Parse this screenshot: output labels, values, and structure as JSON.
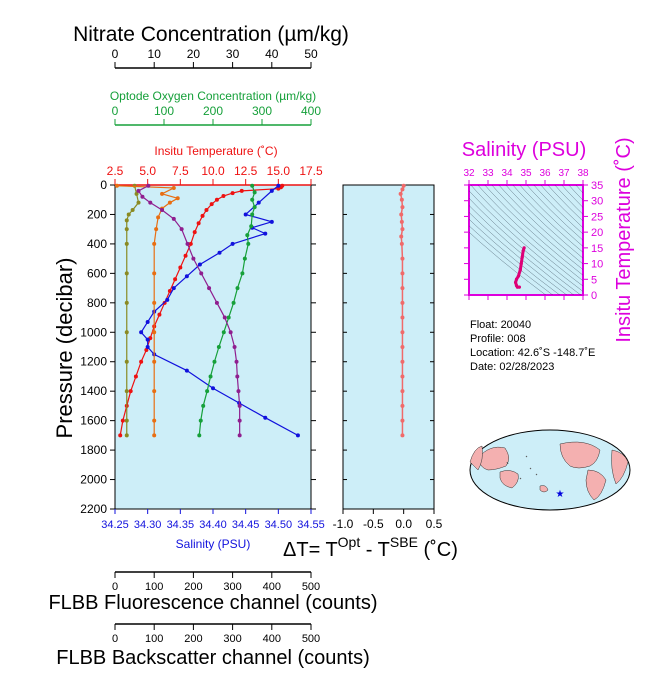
{
  "titles": {
    "nitrate": "Nitrate Concentration (µm/kg)",
    "oxygen": "Optode Oxygen Concentration (µm/kg)",
    "temperature": "Insitu Temperature (˚C)",
    "salinity": "Salinity (PSU)",
    "pressure": "Pressure (decibar)",
    "delta_t": "ΔT= T",
    "delta_t_sup1": "Opt",
    "delta_t_mid": " - T",
    "delta_t_sup2": "SBE",
    "delta_t_unit": " (˚C)",
    "fluorescence": "FLBB Fluorescence channel (counts)",
    "backscatter": "FLBB Backscatter channel (counts)",
    "ts_salinity": "Salinity (PSU)",
    "ts_temperature": "Insitu Temperature (˚C)"
  },
  "info": {
    "float": "Float:  20040",
    "profile": "Profile:  008",
    "location": "Location:  42.6˚S  -148.7˚E",
    "date": "Date:  02/28/2023"
  },
  "colors": {
    "panel_bg": "#cdeef8",
    "nitrate": "#8a8a22",
    "oxygen": "#16a03a",
    "temperature": "#ee1111",
    "salinity": "#1111dd",
    "fluorescence": "#e86e12",
    "backscatter": "#8f1e8f",
    "delta_t": "#f06a6a",
    "ts_track": "#dd0077",
    "magenta": "#dd00dd",
    "map_land": "#f4b0b0",
    "map_ocean": "#cdeef8",
    "star": "#0000dd"
  },
  "chart_data": [
    {
      "type": "line",
      "name": "main-profile",
      "y_axis": {
        "label": "Pressure (decibar)",
        "range": [
          2200,
          0
        ],
        "ticks": [
          "0",
          "200",
          "400",
          "600",
          "800",
          "1000",
          "1200",
          "1400",
          "1600",
          "1800",
          "2000",
          "2200"
        ]
      },
      "axes": {
        "nitrate": {
          "label": "Nitrate Concentration (µm/kg)",
          "range": [
            0,
            50
          ],
          "ticks": [
            "0",
            "10",
            "20",
            "30",
            "40",
            "50"
          ]
        },
        "oxygen": {
          "label": "Optode Oxygen Concentration (µm/kg)",
          "range": [
            0,
            400
          ],
          "ticks": [
            "0",
            "100",
            "200",
            "300",
            "400"
          ]
        },
        "temperature": {
          "label": "Insitu Temperature (˚C)",
          "range": [
            2.5,
            17.5
          ],
          "ticks": [
            "2.5",
            "5.0",
            "7.5",
            "10.0",
            "12.5",
            "15.0",
            "17.5"
          ]
        },
        "salinity": {
          "label": "Salinity (PSU)",
          "range": [
            34.25,
            34.55
          ],
          "ticks": [
            "34.25",
            "34.30",
            "34.35",
            "34.40",
            "34.45",
            "34.50",
            "34.55"
          ]
        },
        "fluorescence": {
          "label": "FLBB Fluorescence channel (counts)",
          "range": [
            0,
            500
          ],
          "ticks": [
            "0",
            "100",
            "200",
            "300",
            "400",
            "500"
          ]
        },
        "backscatter": {
          "label": "FLBB Backscatter channel (counts)",
          "range": [
            0,
            500
          ],
          "ticks": [
            "0",
            "100",
            "200",
            "300",
            "400",
            "500"
          ]
        }
      },
      "series": [
        {
          "key": "temperature",
          "axis": "temperature",
          "points": [
            [
              15.3,
              5
            ],
            [
              15.2,
              15
            ],
            [
              15.0,
              25
            ],
            [
              12.2,
              40
            ],
            [
              11.5,
              55
            ],
            [
              10.8,
              75
            ],
            [
              10.3,
              100
            ],
            [
              9.9,
              130
            ],
            [
              9.5,
              170
            ],
            [
              9.2,
              210
            ],
            [
              8.9,
              260
            ],
            [
              8.6,
              320
            ],
            [
              8.3,
              400
            ],
            [
              7.9,
              480
            ],
            [
              7.5,
              560
            ],
            [
              7.1,
              640
            ],
            [
              6.7,
              720
            ],
            [
              6.3,
              800
            ],
            [
              5.9,
              880
            ],
            [
              5.5,
              960
            ],
            [
              5.2,
              1040
            ],
            [
              4.9,
              1120
            ],
            [
              4.5,
              1200
            ],
            [
              4.1,
              1300
            ],
            [
              3.7,
              1400
            ],
            [
              3.4,
              1500
            ],
            [
              3.1,
              1600
            ],
            [
              2.9,
              1700
            ]
          ]
        },
        {
          "key": "salinity",
          "axis": "salinity",
          "points": [
            [
              34.5,
              5
            ],
            [
              34.49,
              40
            ],
            [
              34.47,
              120
            ],
            [
              34.45,
              200
            ],
            [
              34.49,
              250
            ],
            [
              34.46,
              290
            ],
            [
              34.48,
              330
            ],
            [
              34.43,
              400
            ],
            [
              34.41,
              460
            ],
            [
              34.38,
              540
            ],
            [
              34.36,
              620
            ],
            [
              34.34,
              700
            ],
            [
              34.33,
              780
            ],
            [
              34.31,
              860
            ],
            [
              34.3,
              930
            ],
            [
              34.29,
              1000
            ],
            [
              34.3,
              1050
            ],
            [
              34.3,
              1100
            ],
            [
              34.31,
              1150
            ],
            [
              34.36,
              1260
            ],
            [
              34.4,
              1380
            ],
            [
              34.44,
              1480
            ],
            [
              34.48,
              1580
            ],
            [
              34.53,
              1700
            ]
          ]
        },
        {
          "key": "nitrate",
          "axis": "nitrate",
          "points": [
            [
              5.0,
              5
            ],
            [
              5.5,
              60
            ],
            [
              6.0,
              120
            ],
            [
              4.5,
              170
            ],
            [
              3.5,
              200
            ],
            [
              3.0,
              240
            ],
            [
              3.0,
              300
            ],
            [
              3.0,
              400
            ],
            [
              3.0,
              600
            ],
            [
              3.0,
              800
            ],
            [
              3.0,
              1000
            ],
            [
              3.0,
              1200
            ],
            [
              3.0,
              1400
            ],
            [
              3.0,
              1600
            ],
            [
              3.0,
              1700
            ]
          ]
        },
        {
          "key": "oxygen",
          "axis": "oxygen",
          "points": [
            [
              280,
              5
            ],
            [
              285,
              50
            ],
            [
              280,
              100
            ],
            [
              285,
              150
            ],
            [
              280,
              200
            ],
            [
              278,
              280
            ],
            [
              270,
              340
            ],
            [
              272,
              400
            ],
            [
              265,
              500
            ],
            [
              260,
              600
            ],
            [
              250,
              700
            ],
            [
              242,
              800
            ],
            [
              232,
              900
            ],
            [
              222,
              1000
            ],
            [
              212,
              1100
            ],
            [
              203,
              1200
            ],
            [
              195,
              1300
            ],
            [
              188,
              1400
            ],
            [
              180,
              1500
            ],
            [
              175,
              1600
            ],
            [
              172,
              1700
            ]
          ]
        },
        {
          "key": "fluorescence",
          "axis": "fluorescence",
          "points": [
            [
              5,
              5
            ],
            [
              150,
              20
            ],
            [
              120,
              60
            ],
            [
              160,
              90
            ],
            [
              140,
              120
            ],
            [
              120,
              160
            ],
            [
              110,
              220
            ],
            [
              105,
              300
            ],
            [
              100,
              400
            ],
            [
              100,
              600
            ],
            [
              100,
              800
            ],
            [
              100,
              1000
            ],
            [
              100,
              1200
            ],
            [
              100,
              1400
            ],
            [
              100,
              1600
            ],
            [
              100,
              1700
            ]
          ]
        },
        {
          "key": "backscatter",
          "axis": "backscatter",
          "points": [
            [
              85,
              5
            ],
            [
              60,
              40
            ],
            [
              70,
              80
            ],
            [
              90,
              120
            ],
            [
              120,
              170
            ],
            [
              150,
              230
            ],
            [
              170,
              300
            ],
            [
              185,
              400
            ],
            [
              200,
              500
            ],
            [
              220,
              600
            ],
            [
              240,
              700
            ],
            [
              260,
              800
            ],
            [
              280,
              900
            ],
            [
              295,
              1000
            ],
            [
              305,
              1100
            ],
            [
              310,
              1200
            ],
            [
              312,
              1300
            ],
            [
              315,
              1400
            ],
            [
              318,
              1500
            ],
            [
              318,
              1600
            ],
            [
              318,
              1700
            ]
          ]
        }
      ]
    },
    {
      "type": "line",
      "name": "delta-t",
      "x_axis": {
        "label": "ΔT= T^Opt - T^SBE (˚C)",
        "range": [
          -1.0,
          0.5
        ],
        "ticks": [
          "-1.0",
          "-0.5",
          "0.0",
          "0.5"
        ]
      },
      "y_range": [
        2200,
        0
      ],
      "points": [
        [
          0.0,
          5
        ],
        [
          -0.02,
          30
        ],
        [
          -0.05,
          60
        ],
        [
          -0.03,
          100
        ],
        [
          -0.02,
          150
        ],
        [
          -0.04,
          200
        ],
        [
          -0.03,
          250
        ],
        [
          -0.02,
          300
        ],
        [
          -0.04,
          350
        ],
        [
          -0.03,
          400
        ],
        [
          -0.02,
          500
        ],
        [
          -0.02,
          600
        ],
        [
          -0.02,
          700
        ],
        [
          -0.02,
          800
        ],
        [
          -0.02,
          900
        ],
        [
          -0.02,
          1000
        ],
        [
          -0.02,
          1100
        ],
        [
          -0.02,
          1200
        ],
        [
          -0.02,
          1300
        ],
        [
          -0.02,
          1400
        ],
        [
          -0.02,
          1500
        ],
        [
          -0.02,
          1600
        ],
        [
          -0.02,
          1700
        ]
      ]
    },
    {
      "type": "scatter",
      "name": "ts-diagram",
      "x_axis": {
        "label": "Salinity (PSU)",
        "range": [
          32,
          38
        ],
        "ticks": [
          "32",
          "33",
          "34",
          "35",
          "36",
          "37",
          "38"
        ]
      },
      "y_axis": {
        "label": "Insitu Temperature (˚C)",
        "range": [
          0,
          35
        ],
        "ticks": [
          "0",
          "5",
          "10",
          "15",
          "20",
          "25",
          "30",
          "35"
        ]
      },
      "points": [
        [
          34.9,
          15.0
        ],
        [
          34.85,
          14.0
        ],
        [
          34.8,
          12.0
        ],
        [
          34.75,
          10.0
        ],
        [
          34.7,
          8.0
        ],
        [
          34.6,
          6.0
        ],
        [
          34.5,
          5.0
        ],
        [
          34.45,
          4.0
        ],
        [
          34.5,
          3.0
        ],
        [
          34.55,
          2.5
        ],
        [
          34.65,
          2.5
        ]
      ]
    }
  ]
}
